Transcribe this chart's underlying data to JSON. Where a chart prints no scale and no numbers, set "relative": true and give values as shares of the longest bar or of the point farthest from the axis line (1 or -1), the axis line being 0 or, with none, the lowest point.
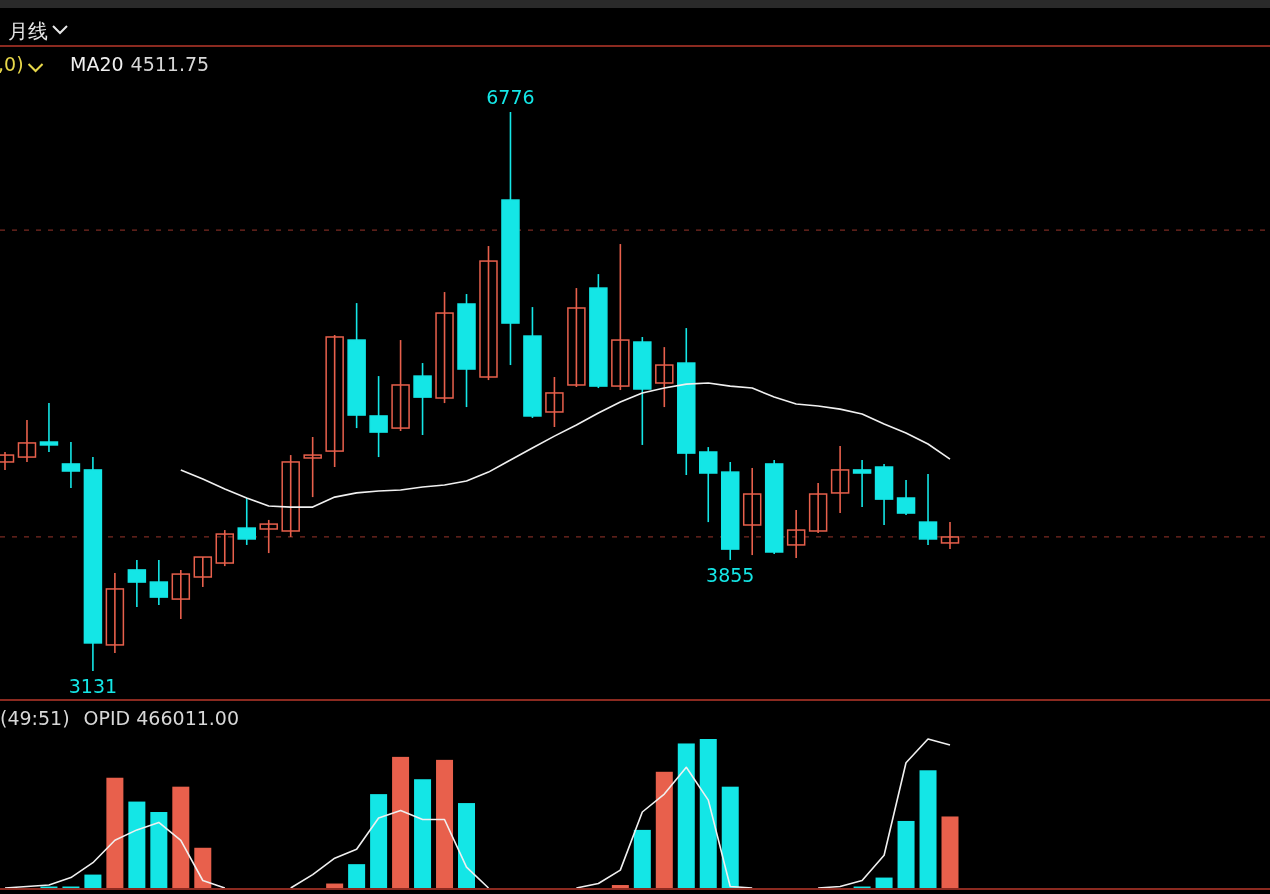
{
  "chart_data": [
    {
      "type": "candlestick",
      "title": "月线",
      "categories": [
        null,
        null,
        null,
        null,
        null,
        null,
        null,
        null,
        null,
        null,
        null,
        null,
        null,
        null,
        null,
        null,
        null,
        null,
        null,
        null,
        null,
        null,
        null,
        null,
        null,
        null,
        null,
        null,
        null,
        null,
        null,
        null,
        null,
        null,
        null,
        null,
        null,
        null,
        null,
        null,
        null,
        null,
        null,
        null
      ],
      "ohlc": [
        [
          4494,
          4559,
          4442,
          4539
        ],
        [
          4526,
          4768,
          4494,
          4618
        ],
        [
          4624,
          4878,
          4559,
          4605
        ],
        [
          4481,
          4624,
          4324,
          4435
        ],
        [
          4442,
          4526,
          3131,
          3314
        ],
        [
          3301,
          3770,
          3248,
          3666
        ],
        [
          3790,
          3855,
          3548,
          3711
        ],
        [
          3711,
          3855,
          3561,
          3613
        ],
        [
          3600,
          3790,
          3470,
          3763
        ],
        [
          3744,
          3874,
          3679,
          3874
        ],
        [
          3835,
          4050,
          3815,
          4024
        ],
        [
          4063,
          4259,
          3953,
          3992
        ],
        [
          4057,
          4116,
          3900,
          4089
        ],
        [
          4044,
          4539,
          4005,
          4494
        ],
        [
          4520,
          4657,
          4265,
          4539
        ],
        [
          4565,
          5322,
          4461,
          5309
        ],
        [
          5289,
          5530,
          4715,
          4800
        ],
        [
          4794,
          5054,
          4526,
          4689
        ],
        [
          4715,
          5289,
          4696,
          4996
        ],
        [
          5054,
          5139,
          4670,
          4917
        ],
        [
          4911,
          5602,
          4878,
          5465
        ],
        [
          5524,
          5589,
          4852,
          5100
        ],
        [
          5048,
          5902,
          5028,
          5804
        ],
        [
          6202,
          6776,
          5126,
          5400
        ],
        [
          5315,
          5504,
          4781,
          4794
        ],
        [
          4820,
          5048,
          4722,
          4944
        ],
        [
          4996,
          5628,
          4983,
          5498
        ],
        [
          5628,
          5719,
          4976,
          4989
        ],
        [
          4989,
          5915,
          4963,
          5289
        ],
        [
          5276,
          5309,
          4605,
          4970
        ],
        [
          5009,
          5243,
          4852,
          5126
        ],
        [
          5139,
          5367,
          4409,
          4552
        ],
        [
          4559,
          4591,
          4102,
          4422
        ],
        [
          4428,
          4494,
          3855,
          3926
        ],
        [
          4083,
          4455,
          3887,
          4285
        ],
        [
          4481,
          4507,
          3894,
          3907
        ],
        [
          3953,
          4181,
          3868,
          4050
        ],
        [
          4044,
          4357,
          4031,
          4285
        ],
        [
          4292,
          4598,
          4161,
          4442
        ],
        [
          4442,
          4507,
          4200,
          4422
        ],
        [
          4461,
          4481,
          4083,
          4252
        ],
        [
          4259,
          4376,
          4148,
          4161
        ],
        [
          4102,
          4415,
          3953,
          3992
        ],
        [
          3966,
          4102,
          3926,
          4005
        ]
      ],
      "colors": [
        "#e8604c",
        "#e8604c",
        "#14e6e6",
        "#14e6e6",
        "#14e6e6",
        "#e8604c",
        "#14e6e6",
        "#14e6e6",
        "#e8604c",
        "#e8604c",
        "#e8604c",
        "#14e6e6",
        "#e8604c",
        "#e8604c",
        "#e8604c",
        "#e8604c",
        "#14e6e6",
        "#14e6e6",
        "#e8604c",
        "#14e6e6",
        "#e8604c",
        "#14e6e6",
        "#e8604c",
        "#14e6e6",
        "#14e6e6",
        "#e8604c",
        "#e8604c",
        "#14e6e6",
        "#e8604c",
        "#14e6e6",
        "#e8604c",
        "#14e6e6",
        "#14e6e6",
        "#14e6e6",
        "#e8604c",
        "#14e6e6",
        "#e8604c",
        "#e8604c",
        "#e8604c",
        "#14e6e6",
        "#14e6e6",
        "#14e6e6",
        "#14e6e6",
        "#e8604c"
      ],
      "series": [
        {
          "name": "MA20",
          "type": "line",
          "color": "#f0f0f0",
          "values": [
            null,
            null,
            null,
            null,
            null,
            null,
            null,
            null,
            4442,
            4383,
            4318,
            4259,
            4207,
            4200,
            4200,
            4265,
            4292,
            4305,
            4311,
            4331,
            4344,
            4370,
            4428,
            4507,
            4585,
            4663,
            4735,
            4813,
            4885,
            4944,
            4976,
            5002,
            5009,
            4989,
            4976,
            4917,
            4872,
            4859,
            4839,
            4807,
            4741,
            4683,
            4611,
            4512
          ]
        }
      ],
      "ref_lines": [
        {
          "axis": "y",
          "value": 6006,
          "color": "#7a2a22",
          "line_style": "dashed"
        },
        {
          "axis": "y",
          "value": 4005,
          "color": "#7a2a22",
          "line_style": "dashed"
        }
      ],
      "annotations": [
        ",0)",
        "4511.75",
        {
          "text": "6776",
          "y": 6776
        },
        {
          "text": "3131",
          "y": 3131
        },
        {
          "text": "3855",
          "y": 3855
        }
      ]
    },
    {
      "type": "bar",
      "relative": true,
      "categories": [
        null,
        null,
        null,
        null,
        null,
        null,
        null,
        null,
        null,
        null,
        null,
        null,
        null,
        null,
        null,
        null,
        null,
        null,
        null,
        null,
        null,
        null,
        null,
        null,
        null,
        null,
        null,
        null,
        null,
        null,
        null,
        null,
        null,
        null,
        null,
        null,
        null,
        null,
        null,
        null,
        null,
        null,
        null,
        null
      ],
      "series": [
        {
          "type": "bar",
          "values": [
            null,
            null,
            0.01,
            0.01,
            0.09,
            0.74,
            0.58,
            0.51,
            0.68,
            0.27,
            null,
            null,
            null,
            null,
            null,
            0.03,
            0.16,
            0.63,
            0.88,
            0.73,
            0.86,
            0.57,
            null,
            null,
            null,
            null,
            null,
            null,
            0.02,
            0.39,
            0.78,
            0.97,
            1.0,
            0.68,
            null,
            null,
            null,
            null,
            null,
            0.01,
            0.07,
            0.45,
            0.79,
            0.48
          ],
          "colors": [
            null,
            null,
            "#14e6e6",
            "#14e6e6",
            "#14e6e6",
            "#e8604c",
            "#14e6e6",
            "#14e6e6",
            "#e8604c",
            "#e8604c",
            null,
            null,
            null,
            null,
            null,
            "#e8604c",
            "#14e6e6",
            "#14e6e6",
            "#e8604c",
            "#14e6e6",
            "#e8604c",
            "#14e6e6",
            null,
            null,
            null,
            null,
            null,
            null,
            "#e8604c",
            "#14e6e6",
            "#e8604c",
            "#14e6e6",
            "#14e6e6",
            "#14e6e6",
            null,
            null,
            null,
            null,
            null,
            "#14e6e6",
            "#14e6e6",
            "#14e6e6",
            "#14e6e6",
            "#e8604c"
          ]
        },
        {
          "type": "line",
          "color": "#f0f0f0",
          "values": [
            0,
            0.01,
            0.02,
            0.07,
            0.17,
            0.32,
            0.39,
            0.44,
            0.32,
            0.05,
            0,
            null,
            null,
            0,
            0.09,
            0.2,
            0.26,
            0.47,
            0.52,
            0.46,
            0.46,
            0.14,
            0,
            null,
            null,
            null,
            0,
            0.03,
            0.12,
            0.51,
            0.63,
            0.81,
            0.59,
            0.01,
            0,
            null,
            null,
            0,
            0.01,
            0.05,
            0.22,
            0.84,
            1.0,
            0.96
          ]
        }
      ],
      "annotations": [
        "(49:51)",
        "OPID 466011.00"
      ]
    }
  ]
}
